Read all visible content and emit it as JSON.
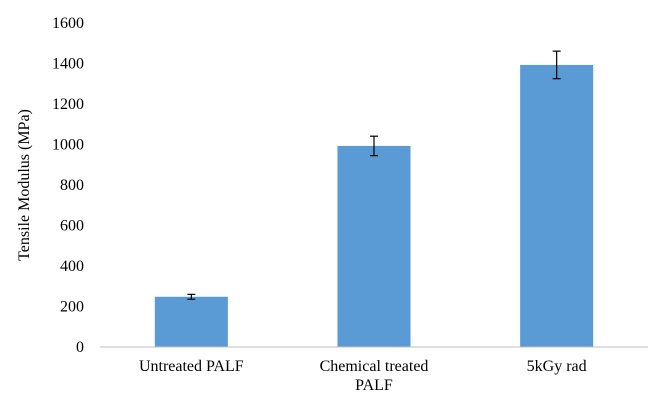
{
  "chart_data": {
    "type": "bar",
    "title": "",
    "xlabel": "",
    "ylabel": "Tensile Modulus (MPa)",
    "categories": [
      {
        "lines": [
          "Untreated PALF"
        ]
      },
      {
        "lines": [
          "Chemical treated",
          "PALF"
        ]
      },
      {
        "lines": [
          "5kGy rad"
        ]
      }
    ],
    "values": [
      248,
      993,
      1393
    ],
    "errors": [
      12,
      48,
      68
    ],
    "ylim": [
      0,
      1600
    ],
    "yticks": [
      0,
      200,
      400,
      600,
      800,
      1000,
      1200,
      1400,
      1600
    ],
    "grid": false,
    "legend": "none",
    "bar_color": "#5b9bd5",
    "axis_color": "#bfbfbf",
    "error_color": "#000000"
  }
}
